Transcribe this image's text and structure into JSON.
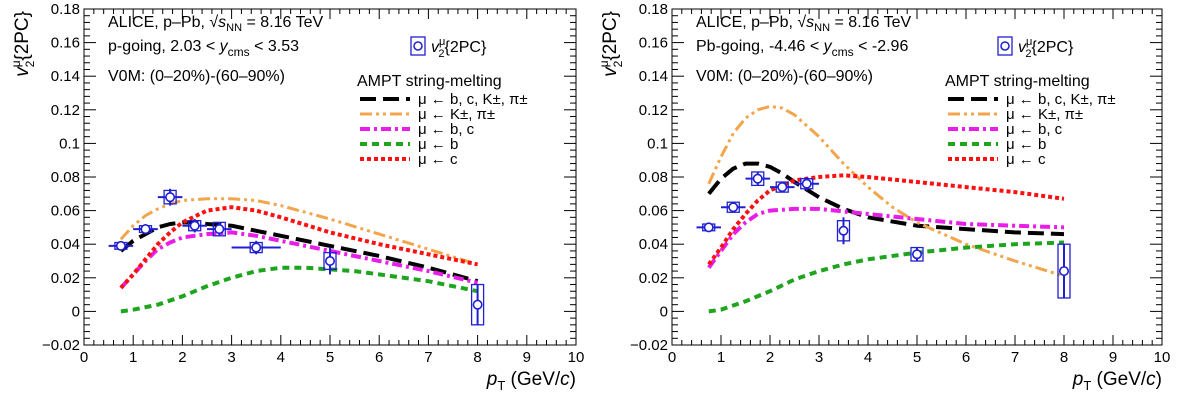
{
  "chart_data": [
    {
      "type": "line",
      "title_line1_prefix": "ALICE, p–Pb, ",
      "sqrt_label": "s",
      "sqrt_sub": "NN",
      "title_energy": " = 8.16 TeV",
      "title_line2_prefix": "p-going, 2.03 < ",
      "title_line2_y": "y",
      "title_line2_ysub": "cms",
      "title_line2_suffix": " < 3.53",
      "title_line3": "V0M: (0–20%)-(60–90%)",
      "ylabel_v": "v",
      "ylabel_sup": "μ",
      "ylabel_sub": "2",
      "ylabel_suffix": "{2PC}",
      "xlabel_p": "p",
      "xlabel_sub": "T",
      "xlabel_suffix": " (GeV/",
      "xlabel_c": "c",
      "xlabel_close": ")",
      "xlim": [
        0,
        10
      ],
      "ylim": [
        -0.02,
        0.18
      ],
      "xticks": [
        "0",
        "1",
        "2",
        "3",
        "4",
        "5",
        "6",
        "7",
        "8",
        "9",
        "10"
      ],
      "yticks": [
        "−0.02",
        "0",
        "0.02",
        "0.04",
        "0.06",
        "0.08",
        "0.1",
        "0.12",
        "0.14",
        "0.16",
        "0.18"
      ],
      "yticks_values": [
        -0.02,
        0,
        0.02,
        0.04,
        0.06,
        0.08,
        0.1,
        0.12,
        0.14,
        0.16,
        0.18
      ],
      "legend_data_v": "v",
      "legend_data_sup": "μ",
      "legend_data_sub": "2",
      "legend_data_suffix": "{2PC}",
      "legend_header": "AMPT string-melting",
      "data_points": {
        "x": [
          0.75,
          1.25,
          1.75,
          2.25,
          2.75,
          3.5,
          5.0,
          8.0
        ],
        "y": [
          0.039,
          0.049,
          0.068,
          0.051,
          0.049,
          0.038,
          0.03,
          0.004
        ],
        "xerr": [
          0.25,
          0.25,
          0.25,
          0.25,
          0.25,
          0.5,
          0.0,
          0.0
        ],
        "stat": [
          0.002,
          0.003,
          0.005,
          0.004,
          0.004,
          0.004,
          0.008,
          0.012
        ],
        "syst": [
          0.002,
          0.002,
          0.004,
          0.003,
          0.004,
          0.003,
          0.005,
          0.012
        ]
      },
      "series": [
        {
          "name": "μ ← b, c, K±, π±",
          "color": "#000000",
          "dash": "16,7",
          "width": 4,
          "x": [
            0.75,
            1.0,
            1.25,
            1.5,
            1.75,
            2.0,
            2.25,
            2.5,
            3.0,
            3.5,
            4.0,
            5.0,
            6.0,
            7.0,
            8.0
          ],
          "y": [
            0.036,
            0.042,
            0.046,
            0.05,
            0.052,
            0.053,
            0.053,
            0.052,
            0.051,
            0.048,
            0.045,
            0.039,
            0.033,
            0.026,
            0.018
          ]
        },
        {
          "name": "μ ← K±, π±",
          "color": "#F2A54A",
          "dash": "12,4,3,4,3,4",
          "width": 3,
          "x": [
            0.75,
            1.0,
            1.25,
            1.5,
            1.75,
            2.0,
            2.5,
            3.0,
            3.5,
            4.0,
            5.0,
            6.0,
            7.0,
            8.0
          ],
          "y": [
            0.043,
            0.051,
            0.057,
            0.061,
            0.064,
            0.066,
            0.067,
            0.067,
            0.066,
            0.063,
            0.055,
            0.046,
            0.037,
            0.028
          ]
        },
        {
          "name": "μ ← b, c",
          "color": "#E81EE8",
          "dash": "10,4,3,4",
          "width": 4,
          "x": [
            0.75,
            1.0,
            1.25,
            1.5,
            1.75,
            2.0,
            2.5,
            3.0,
            3.5,
            4.0,
            5.0,
            6.0,
            7.0,
            8.0
          ],
          "y": [
            0.014,
            0.022,
            0.03,
            0.037,
            0.041,
            0.044,
            0.046,
            0.047,
            0.045,
            0.042,
            0.036,
            0.03,
            0.024,
            0.017
          ]
        },
        {
          "name": "μ ← b",
          "color": "#1EA51E",
          "dash": "7,5",
          "width": 4,
          "x": [
            0.75,
            1.0,
            1.5,
            2.0,
            2.5,
            3.0,
            3.5,
            4.0,
            4.5,
            5.0,
            5.5,
            6.0,
            7.0,
            8.0
          ],
          "y": [
            0.0,
            0.001,
            0.004,
            0.009,
            0.015,
            0.02,
            0.024,
            0.026,
            0.026,
            0.025,
            0.024,
            0.022,
            0.018,
            0.012
          ]
        },
        {
          "name": "μ ← c",
          "color": "#FF1010",
          "dash": "4,3",
          "width": 4,
          "x": [
            0.75,
            1.0,
            1.25,
            1.5,
            1.75,
            2.0,
            2.5,
            3.0,
            3.5,
            4.0,
            5.0,
            6.0,
            7.0,
            8.0
          ],
          "y": [
            0.014,
            0.022,
            0.031,
            0.04,
            0.047,
            0.053,
            0.06,
            0.062,
            0.06,
            0.056,
            0.047,
            0.04,
            0.034,
            0.028
          ]
        }
      ]
    },
    {
      "type": "line",
      "title_line1_prefix": "ALICE, p–Pb, ",
      "sqrt_label": "s",
      "sqrt_sub": "NN",
      "title_energy": " = 8.16 TeV",
      "title_line2_prefix": "Pb-going, -4.46 < ",
      "title_line2_y": "y",
      "title_line2_ysub": "cms",
      "title_line2_suffix": " < -2.96",
      "title_line3": "V0M: (0–20%)-(60–90%)",
      "ylabel_v": "v",
      "ylabel_sup": "μ",
      "ylabel_sub": "2",
      "ylabel_suffix": "{2PC}",
      "xlabel_p": "p",
      "xlabel_sub": "T",
      "xlabel_suffix": " (GeV/",
      "xlabel_c": "c",
      "xlabel_close": ")",
      "xlim": [
        0,
        10
      ],
      "ylim": [
        -0.02,
        0.18
      ],
      "xticks": [
        "0",
        "1",
        "2",
        "3",
        "4",
        "5",
        "6",
        "7",
        "8",
        "9",
        "10"
      ],
      "yticks": [
        "−0.02",
        "0",
        "0.02",
        "0.04",
        "0.06",
        "0.08",
        "0.1",
        "0.12",
        "0.14",
        "0.16",
        "0.18"
      ],
      "yticks_values": [
        -0.02,
        0,
        0.02,
        0.04,
        0.06,
        0.08,
        0.1,
        0.12,
        0.14,
        0.16,
        0.18
      ],
      "legend_data_v": "v",
      "legend_data_sup": "μ",
      "legend_data_sub": "2",
      "legend_data_suffix": "{2PC}",
      "legend_header": "AMPT string-melting",
      "data_points": {
        "x": [
          0.75,
          1.25,
          1.75,
          2.25,
          2.75,
          3.5,
          5.0,
          8.0
        ],
        "y": [
          0.05,
          0.062,
          0.079,
          0.074,
          0.076,
          0.048,
          0.034,
          0.024
        ],
        "xerr": [
          0.25,
          0.25,
          0.25,
          0.25,
          0.25,
          0.0,
          0.0,
          0.0
        ],
        "stat": [
          0.002,
          0.003,
          0.004,
          0.003,
          0.004,
          0.008,
          0.004,
          0.016
        ],
        "syst": [
          0.002,
          0.003,
          0.004,
          0.003,
          0.003,
          0.006,
          0.004,
          0.016
        ]
      },
      "series": [
        {
          "name": "μ ← b, c, K±, π±",
          "color": "#000000",
          "dash": "16,7",
          "width": 4,
          "x": [
            0.75,
            1.0,
            1.25,
            1.5,
            1.75,
            2.0,
            2.25,
            2.5,
            3.0,
            3.5,
            4.0,
            5.0,
            6.0,
            7.0,
            8.0
          ],
          "y": [
            0.07,
            0.079,
            0.085,
            0.088,
            0.088,
            0.086,
            0.082,
            0.077,
            0.068,
            0.061,
            0.056,
            0.051,
            0.049,
            0.047,
            0.046
          ]
        },
        {
          "name": "μ ← K±, π±",
          "color": "#F2A54A",
          "dash": "12,4,3,4,3,4",
          "width": 3,
          "x": [
            0.75,
            1.0,
            1.25,
            1.5,
            1.75,
            2.0,
            2.25,
            2.5,
            3.0,
            3.5,
            4.0,
            4.5,
            5.0,
            6.0,
            7.0,
            8.0
          ],
          "y": [
            0.076,
            0.092,
            0.106,
            0.115,
            0.12,
            0.122,
            0.121,
            0.117,
            0.104,
            0.088,
            0.074,
            0.062,
            0.053,
            0.04,
            0.03,
            0.021
          ]
        },
        {
          "name": "μ ← b, c",
          "color": "#E81EE8",
          "dash": "10,4,3,4",
          "width": 4,
          "x": [
            0.75,
            1.0,
            1.25,
            1.5,
            1.75,
            2.0,
            2.5,
            3.0,
            4.0,
            5.0,
            6.0,
            7.0,
            8.0
          ],
          "y": [
            0.026,
            0.036,
            0.046,
            0.053,
            0.058,
            0.06,
            0.061,
            0.061,
            0.058,
            0.055,
            0.052,
            0.051,
            0.05
          ]
        },
        {
          "name": "μ ← b",
          "color": "#1EA51E",
          "dash": "7,5",
          "width": 4,
          "x": [
            0.75,
            1.0,
            1.5,
            2.0,
            2.5,
            3.0,
            3.5,
            4.0,
            5.0,
            6.0,
            7.0,
            8.0
          ],
          "y": [
            0.0,
            0.001,
            0.006,
            0.012,
            0.019,
            0.024,
            0.028,
            0.031,
            0.035,
            0.038,
            0.04,
            0.041
          ]
        },
        {
          "name": "μ ← c",
          "color": "#FF1010",
          "dash": "4,3",
          "width": 4,
          "x": [
            0.75,
            1.0,
            1.25,
            1.5,
            1.75,
            2.0,
            2.5,
            3.0,
            3.5,
            4.0,
            5.0,
            6.0,
            7.0,
            8.0
          ],
          "y": [
            0.028,
            0.038,
            0.049,
            0.058,
            0.066,
            0.072,
            0.078,
            0.08,
            0.081,
            0.08,
            0.077,
            0.074,
            0.071,
            0.067
          ]
        }
      ]
    }
  ]
}
